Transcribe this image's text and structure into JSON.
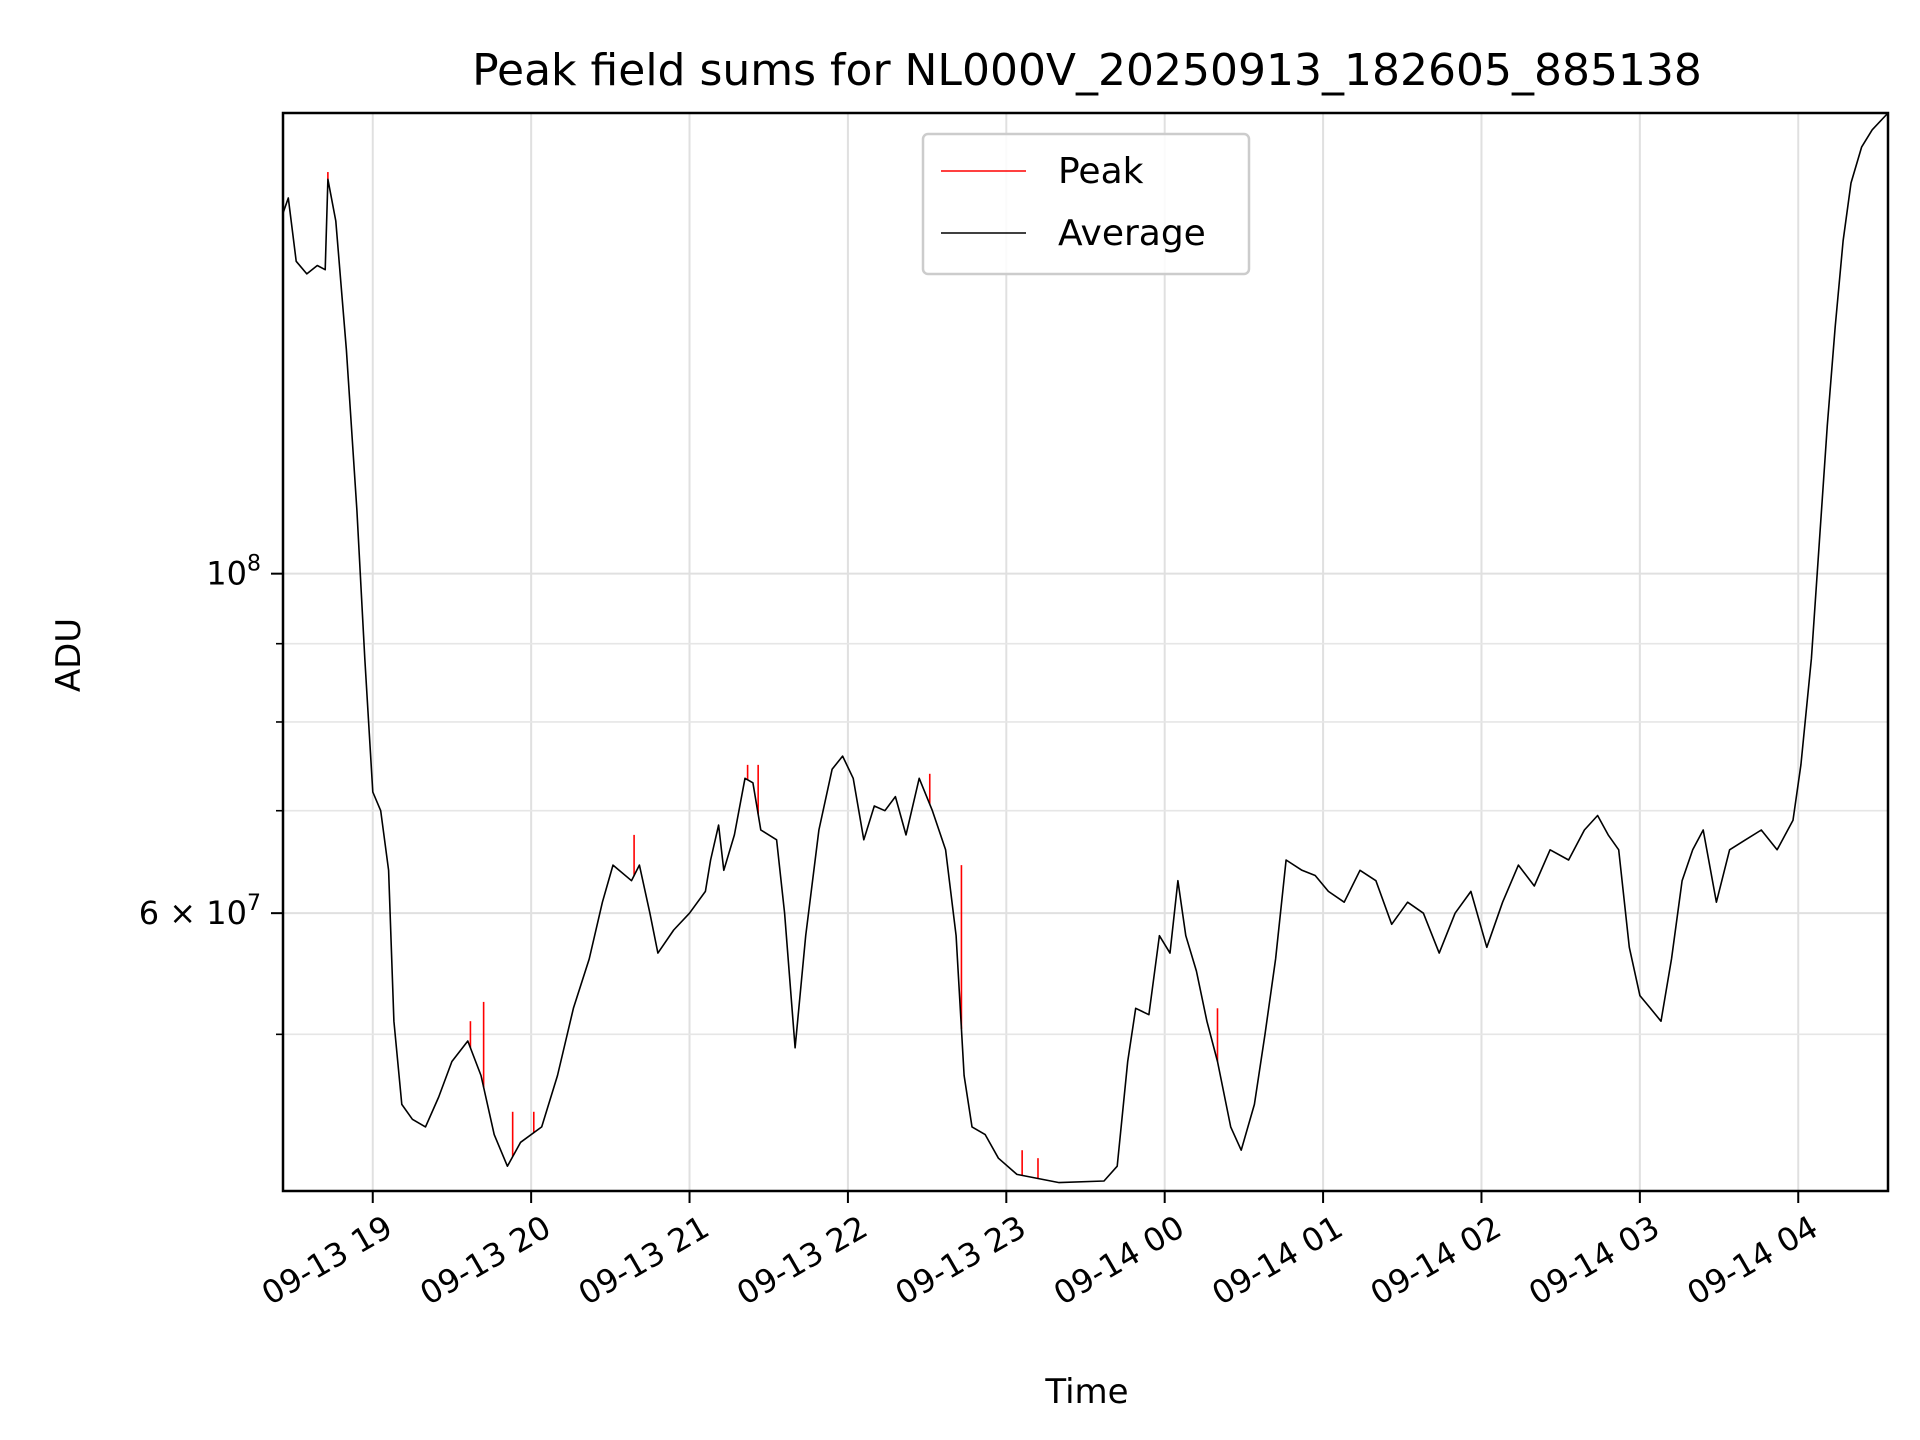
{
  "chart_data": {
    "type": "line",
    "title": "Peak field sums for NL000V_20250913_182605_885138",
    "xlabel": "Time",
    "ylabel": "ADU",
    "y_scale": "log",
    "ylim": [
      39500000,
      200000000
    ],
    "xlim": [
      "2025-09-13 18:26",
      "2025-09-14 04:34"
    ],
    "grid": true,
    "legend_position": "top-center",
    "x_tick_labels": [
      "09-13 19",
      "09-13 20",
      "09-13 21",
      "09-13 22",
      "09-13 23",
      "09-14 00",
      "09-14 01",
      "09-14 02",
      "09-14 03",
      "09-14 04"
    ],
    "x_tick_values": [
      "2025-09-13 19:00",
      "2025-09-13 20:00",
      "2025-09-13 21:00",
      "2025-09-13 22:00",
      "2025-09-13 23:00",
      "2025-09-14 00:00",
      "2025-09-14 01:00",
      "2025-09-14 02:00",
      "2025-09-14 03:00",
      "2025-09-14 04:00"
    ],
    "y_ticks": [
      {
        "value": 100000000,
        "base": "10",
        "exp": "8"
      },
      {
        "value": 60000000,
        "text": "6 × 10",
        "exp": "7"
      }
    ],
    "y_minor_ticks": [
      50000000,
      70000000,
      80000000,
      90000000
    ],
    "series": [
      {
        "name": "Average",
        "color": "#000000",
        "points": [
          [
            "2025-09-13 18:26",
            172000000
          ],
          [
            "2025-09-13 18:28",
            176000000
          ],
          [
            "2025-09-13 18:31",
            160000000
          ],
          [
            "2025-09-13 18:35",
            157000000
          ],
          [
            "2025-09-13 18:39",
            159000000
          ],
          [
            "2025-09-13 18:42",
            158000000
          ],
          [
            "2025-09-13 18:43",
            181000000
          ],
          [
            "2025-09-13 18:46",
            170000000
          ],
          [
            "2025-09-13 18:50",
            140000000
          ],
          [
            "2025-09-13 18:54",
            110000000
          ],
          [
            "2025-09-13 18:57",
            88000000
          ],
          [
            "2025-09-13 19:00",
            72000000
          ],
          [
            "2025-09-13 19:03",
            70000000
          ],
          [
            "2025-09-13 19:06",
            64000000
          ],
          [
            "2025-09-13 19:08",
            51000000
          ],
          [
            "2025-09-13 19:11",
            45000000
          ],
          [
            "2025-09-13 19:15",
            44000000
          ],
          [
            "2025-09-13 19:20",
            43500000
          ],
          [
            "2025-09-13 19:25",
            45500000
          ],
          [
            "2025-09-13 19:30",
            48000000
          ],
          [
            "2025-09-13 19:36",
            49500000
          ],
          [
            "2025-09-13 19:41",
            47000000
          ],
          [
            "2025-09-13 19:46",
            43000000
          ],
          [
            "2025-09-13 19:51",
            41000000
          ],
          [
            "2025-09-13 19:56",
            42500000
          ],
          [
            "2025-09-13 20:04",
            43500000
          ],
          [
            "2025-09-13 20:10",
            47000000
          ],
          [
            "2025-09-13 20:16",
            52000000
          ],
          [
            "2025-09-13 20:22",
            56000000
          ],
          [
            "2025-09-13 20:27",
            61000000
          ],
          [
            "2025-09-13 20:31",
            64500000
          ],
          [
            "2025-09-13 20:38",
            63000000
          ],
          [
            "2025-09-13 20:41",
            64500000
          ],
          [
            "2025-09-13 20:45",
            60000000
          ],
          [
            "2025-09-13 20:48",
            56500000
          ],
          [
            "2025-09-13 20:54",
            58500000
          ],
          [
            "2025-09-13 21:00",
            60000000
          ],
          [
            "2025-09-13 21:06",
            62000000
          ],
          [
            "2025-09-13 21:08",
            65000000
          ],
          [
            "2025-09-13 21:11",
            68500000
          ],
          [
            "2025-09-13 21:13",
            64000000
          ],
          [
            "2025-09-13 21:17",
            67500000
          ],
          [
            "2025-09-13 21:21",
            73500000
          ],
          [
            "2025-09-13 21:24",
            73000000
          ],
          [
            "2025-09-13 21:27",
            68000000
          ],
          [
            "2025-09-13 21:33",
            67000000
          ],
          [
            "2025-09-13 21:36",
            60000000
          ],
          [
            "2025-09-13 21:40",
            49000000
          ],
          [
            "2025-09-13 21:44",
            58000000
          ],
          [
            "2025-09-13 21:49",
            68000000
          ],
          [
            "2025-09-13 21:54",
            74500000
          ],
          [
            "2025-09-13 21:58",
            76000000
          ],
          [
            "2025-09-13 22:02",
            73500000
          ],
          [
            "2025-09-13 22:06",
            67000000
          ],
          [
            "2025-09-13 22:10",
            70500000
          ],
          [
            "2025-09-13 22:14",
            70000000
          ],
          [
            "2025-09-13 22:18",
            71500000
          ],
          [
            "2025-09-13 22:22",
            67500000
          ],
          [
            "2025-09-13 22:27",
            73500000
          ],
          [
            "2025-09-13 22:32",
            70000000
          ],
          [
            "2025-09-13 22:37",
            66000000
          ],
          [
            "2025-09-13 22:41",
            58000000
          ],
          [
            "2025-09-13 22:44",
            47000000
          ],
          [
            "2025-09-13 22:47",
            43500000
          ],
          [
            "2025-09-13 22:52",
            43000000
          ],
          [
            "2025-09-13 22:57",
            41500000
          ],
          [
            "2025-09-13 23:04",
            40500000
          ],
          [
            "2025-09-13 23:20",
            40000000
          ],
          [
            "2025-09-13 23:37",
            40100000
          ],
          [
            "2025-09-13 23:42",
            41000000
          ],
          [
            "2025-09-13 23:46",
            48000000
          ],
          [
            "2025-09-13 23:49",
            52000000
          ],
          [
            "2025-09-13 23:54",
            51500000
          ],
          [
            "2025-09-13 23:58",
            58000000
          ],
          [
            "2025-09-14 00:02",
            56500000
          ],
          [
            "2025-09-14 00:05",
            63000000
          ],
          [
            "2025-09-14 00:08",
            58000000
          ],
          [
            "2025-09-14 00:12",
            55000000
          ],
          [
            "2025-09-14 00:16",
            51000000
          ],
          [
            "2025-09-14 00:20",
            48000000
          ],
          [
            "2025-09-14 00:25",
            43500000
          ],
          [
            "2025-09-14 00:29",
            42000000
          ],
          [
            "2025-09-14 00:34",
            45000000
          ],
          [
            "2025-09-14 00:38",
            50000000
          ],
          [
            "2025-09-14 00:42",
            56000000
          ],
          [
            "2025-09-14 00:46",
            65000000
          ],
          [
            "2025-09-14 00:52",
            64000000
          ],
          [
            "2025-09-14 00:57",
            63500000
          ],
          [
            "2025-09-14 01:02",
            62000000
          ],
          [
            "2025-09-14 01:08",
            61000000
          ],
          [
            "2025-09-14 01:14",
            64000000
          ],
          [
            "2025-09-14 01:20",
            63000000
          ],
          [
            "2025-09-14 01:26",
            59000000
          ],
          [
            "2025-09-14 01:32",
            61000000
          ],
          [
            "2025-09-14 01:38",
            60000000
          ],
          [
            "2025-09-14 01:44",
            56500000
          ],
          [
            "2025-09-14 01:50",
            60000000
          ],
          [
            "2025-09-14 01:56",
            62000000
          ],
          [
            "2025-09-14 02:02",
            57000000
          ],
          [
            "2025-09-14 02:08",
            61000000
          ],
          [
            "2025-09-14 02:14",
            64500000
          ],
          [
            "2025-09-14 02:20",
            62500000
          ],
          [
            "2025-09-14 02:26",
            66000000
          ],
          [
            "2025-09-14 02:33",
            65000000
          ],
          [
            "2025-09-14 02:39",
            68000000
          ],
          [
            "2025-09-14 02:44",
            69500000
          ],
          [
            "2025-09-14 02:48",
            67500000
          ],
          [
            "2025-09-14 02:52",
            66000000
          ],
          [
            "2025-09-14 02:56",
            57000000
          ],
          [
            "2025-09-14 03:00",
            53000000
          ],
          [
            "2025-09-14 03:04",
            52000000
          ],
          [
            "2025-09-14 03:08",
            51000000
          ],
          [
            "2025-09-14 03:12",
            56000000
          ],
          [
            "2025-09-14 03:16",
            63000000
          ],
          [
            "2025-09-14 03:20",
            66000000
          ],
          [
            "2025-09-14 03:24",
            68000000
          ],
          [
            "2025-09-14 03:29",
            61000000
          ],
          [
            "2025-09-14 03:34",
            66000000
          ],
          [
            "2025-09-14 03:40",
            67000000
          ],
          [
            "2025-09-14 03:46",
            68000000
          ],
          [
            "2025-09-14 03:52",
            66000000
          ],
          [
            "2025-09-14 03:58",
            69000000
          ],
          [
            "2025-09-14 04:01",
            75000000
          ],
          [
            "2025-09-14 04:05",
            88000000
          ],
          [
            "2025-09-14 04:08",
            105000000
          ],
          [
            "2025-09-14 04:11",
            125000000
          ],
          [
            "2025-09-14 04:14",
            145000000
          ],
          [
            "2025-09-14 04:17",
            165000000
          ],
          [
            "2025-09-14 04:20",
            180000000
          ],
          [
            "2025-09-14 04:24",
            190000000
          ],
          [
            "2025-09-14 04:28",
            195000000
          ],
          [
            "2025-09-14 04:34",
            200000000
          ]
        ]
      },
      {
        "name": "Peak",
        "color": "#ff0000",
        "points": [
          [
            "2025-09-13 18:43",
            183000000
          ],
          [
            "2025-09-13 19:37",
            51000000
          ],
          [
            "2025-09-13 19:42",
            52500000
          ],
          [
            "2025-09-13 19:53",
            44500000
          ],
          [
            "2025-09-13 20:01",
            44500000
          ],
          [
            "2025-09-13 20:39",
            67500000
          ],
          [
            "2025-09-13 21:22",
            75000000
          ],
          [
            "2025-09-13 21:26",
            75000000
          ],
          [
            "2025-09-13 22:31",
            74000000
          ],
          [
            "2025-09-13 22:43",
            64500000
          ],
          [
            "2025-09-13 23:06",
            42000000
          ],
          [
            "2025-09-13 23:12",
            41500000
          ],
          [
            "2025-09-14 00:20",
            52000000
          ],
          [
            "2025-09-14 02:35",
            66000000
          ]
        ]
      }
    ]
  }
}
